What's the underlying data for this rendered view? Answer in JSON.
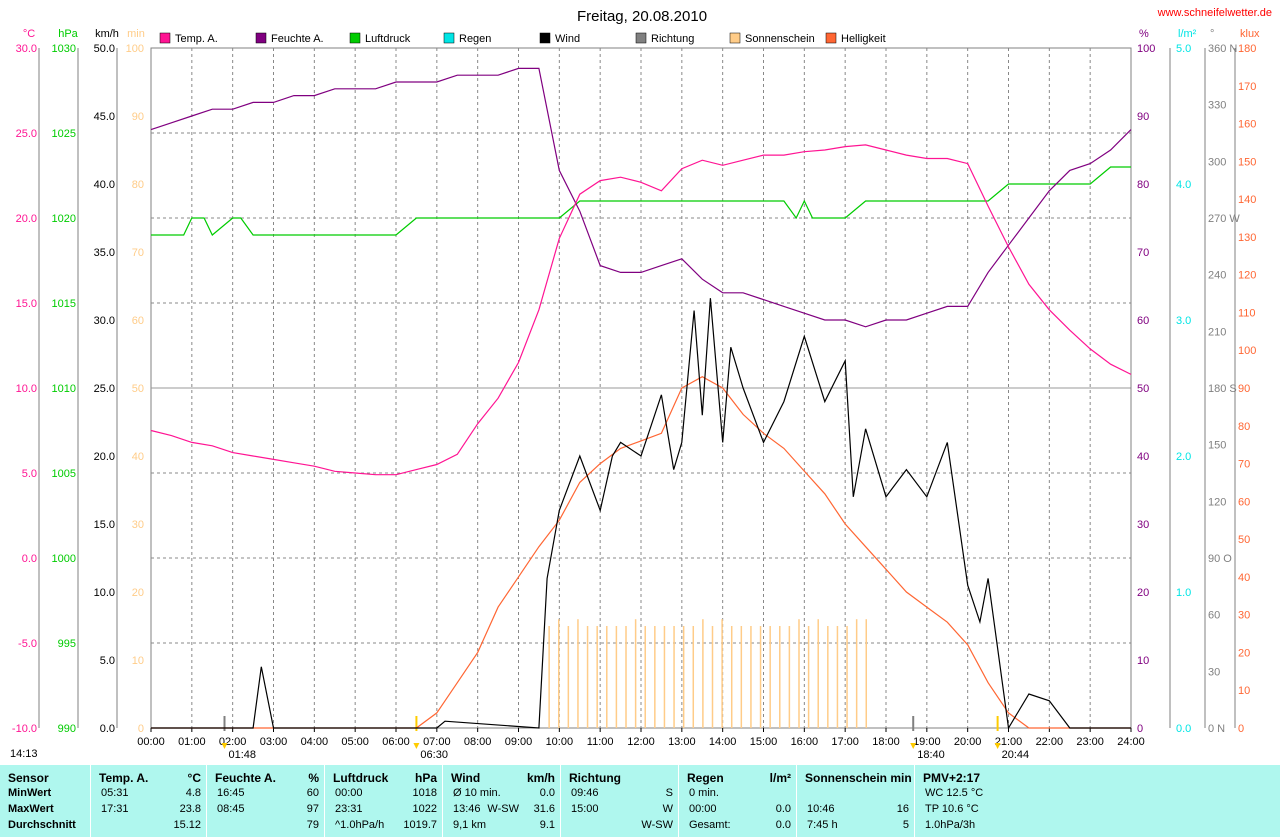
{
  "header": {
    "title": "Freitag, 20.08.2010",
    "website": "www.schneifelwetter.de",
    "timestamp": "14:13"
  },
  "colors": {
    "temp": "#ff1493",
    "humidity": "#800080",
    "pressure": "#00cc00",
    "rain": "#00e5e5",
    "wind": "#000000",
    "direction": "#808080",
    "sunshine": "#ffcc88",
    "brightness": "#ff6633",
    "summary_bg": "#aff7ee"
  },
  "axes": {
    "left": [
      {
        "unit": "°C",
        "ticks": [
          "30.0",
          "25.0",
          "20.0",
          "15.0",
          "10.0",
          "5.0",
          "0.0",
          "-5.0",
          "-10.0"
        ],
        "color": "#ff1493"
      },
      {
        "unit": "hPa",
        "ticks": [
          "1030",
          "1025",
          "1020",
          "1015",
          "1010",
          "1005",
          "1000",
          "995",
          "990"
        ],
        "color": "#00cc00"
      },
      {
        "unit": "km/h",
        "ticks": [
          "50.0",
          "45.0",
          "40.0",
          "35.0",
          "30.0",
          "25.0",
          "20.0",
          "15.0",
          "10.0",
          "5.0",
          "0.0"
        ],
        "color": "#000000"
      },
      {
        "unit": "min",
        "ticks": [
          "100",
          "90",
          "80",
          "70",
          "60",
          "50",
          "40",
          "30",
          "20",
          "10",
          "0"
        ],
        "color": "#ffcc88"
      }
    ],
    "right": [
      {
        "unit": "%",
        "ticks": [
          "100",
          "90",
          "80",
          "70",
          "60",
          "50",
          "40",
          "30",
          "20",
          "10",
          "0"
        ],
        "color": "#800080"
      },
      {
        "unit": "l/m²",
        "ticks": [
          "5.0",
          "4.0",
          "3.0",
          "2.0",
          "1.0",
          "0.0"
        ],
        "color": "#00e5e5"
      },
      {
        "unit": "°",
        "ticks": [
          "360 N",
          "330",
          "300",
          "270 W",
          "240",
          "210",
          "180 S",
          "150",
          "120",
          "90 O",
          "60",
          "30",
          "0 N"
        ],
        "color": "#808080"
      },
      {
        "unit": "klux",
        "ticks": [
          "180",
          "170",
          "160",
          "150",
          "140",
          "130",
          "120",
          "110",
          "100",
          "90",
          "80",
          "70",
          "60",
          "50",
          "40",
          "30",
          "20",
          "10",
          "0"
        ],
        "color": "#ff6633"
      }
    ]
  },
  "legend": [
    {
      "label": "Temp. A.",
      "color": "#ff1493"
    },
    {
      "label": "Feuchte A.",
      "color": "#800080"
    },
    {
      "label": "Luftdruck",
      "color": "#00cc00"
    },
    {
      "label": "Regen",
      "color": "#00e5e5"
    },
    {
      "label": "Wind",
      "color": "#000000"
    },
    {
      "label": "Richtung",
      "color": "#808080"
    },
    {
      "label": "Sonnenschein",
      "color": "#ffcc88"
    },
    {
      "label": "Helligkeit",
      "color": "#ff6633"
    }
  ],
  "events": {
    "moonset": "01:48",
    "sunrise": "06:30",
    "moonrise": "18:40",
    "sunset": "20:44"
  },
  "chart_data": {
    "type": "line",
    "title": "Freitag, 20.08.2010",
    "x_ticks": [
      "00:00",
      "01:00",
      "02:00",
      "03:00",
      "04:00",
      "05:00",
      "06:00",
      "07:00",
      "08:00",
      "09:00",
      "10:00",
      "11:00",
      "12:00",
      "13:00",
      "14:00",
      "15:00",
      "16:00",
      "17:00",
      "18:00",
      "19:00",
      "20:00",
      "21:00",
      "22:00",
      "23:00",
      "24:00"
    ],
    "x_range": [
      0,
      24
    ],
    "grid": true,
    "series": [
      {
        "name": "Temp. A.",
        "axis": "°C",
        "range": [
          -10,
          30
        ],
        "x": [
          0,
          0.5,
          1,
          1.5,
          2,
          2.5,
          3,
          3.5,
          4,
          4.5,
          5,
          5.5,
          6,
          6.5,
          7,
          7.5,
          8,
          8.5,
          9,
          9.5,
          10,
          10.5,
          11,
          11.5,
          12,
          12.5,
          13,
          13.5,
          14,
          14.5,
          15,
          15.5,
          16,
          16.5,
          17,
          17.5,
          18,
          18.5,
          19,
          19.5,
          20,
          20.5,
          21,
          21.5,
          22,
          22.5,
          23,
          23.5,
          24
        ],
        "y": [
          7.5,
          7.2,
          6.8,
          6.6,
          6.2,
          6.0,
          5.8,
          5.6,
          5.4,
          5.1,
          5.0,
          4.9,
          4.9,
          5.2,
          5.5,
          6.1,
          7.9,
          9.4,
          11.5,
          14.6,
          18.8,
          21.4,
          22.2,
          22.4,
          22.1,
          21.6,
          22.9,
          23.4,
          23.1,
          23.4,
          23.7,
          23.7,
          23.9,
          24.0,
          24.2,
          24.3,
          24.0,
          23.7,
          23.5,
          23.5,
          23.2,
          20.7,
          18.3,
          16.1,
          14.6,
          13.4,
          12.3,
          11.4,
          10.8
        ]
      },
      {
        "name": "Feuchte A.",
        "axis": "%",
        "range": [
          0,
          100
        ],
        "x": [
          0,
          0.5,
          1,
          1.5,
          2,
          2.5,
          3,
          3.5,
          4,
          4.5,
          5,
          5.5,
          6,
          6.5,
          7,
          7.5,
          8,
          8.5,
          9,
          9.5,
          10,
          10.5,
          11,
          11.5,
          12,
          12.5,
          13,
          13.5,
          14,
          14.5,
          15,
          15.5,
          16,
          16.5,
          17,
          17.5,
          18,
          18.5,
          19,
          19.5,
          20,
          20.5,
          21,
          21.5,
          22,
          22.5,
          23,
          23.5,
          24
        ],
        "y": [
          88,
          89,
          90,
          91,
          91,
          92,
          92,
          93,
          93,
          94,
          94,
          94,
          95,
          95,
          95,
          96,
          96,
          96,
          97,
          97,
          82,
          76,
          68,
          67,
          67,
          68,
          69,
          66,
          64,
          64,
          63,
          62,
          61,
          60,
          60,
          59,
          60,
          60,
          61,
          62,
          62,
          67,
          71,
          75,
          79,
          82,
          83,
          85,
          88
        ]
      },
      {
        "name": "Luftdruck",
        "axis": "hPa",
        "range": [
          990,
          1030
        ],
        "x": [
          0,
          0.8,
          1,
          1.3,
          1.5,
          2,
          2.2,
          2.5,
          3,
          4,
          5,
          6,
          6.5,
          7,
          8,
          9,
          10,
          10.5,
          11,
          12,
          13,
          14,
          15,
          15.5,
          15.8,
          16,
          16.2,
          17,
          17.5,
          18,
          19,
          20,
          20.5,
          21,
          22,
          23,
          23.5,
          24
        ],
        "y": [
          1019,
          1019,
          1020,
          1020,
          1019,
          1020,
          1020,
          1019,
          1019,
          1019,
          1019,
          1019,
          1020,
          1020,
          1020,
          1020,
          1020,
          1021,
          1021,
          1021,
          1021,
          1021,
          1021,
          1021,
          1020,
          1021,
          1020,
          1020,
          1021,
          1021,
          1021,
          1021,
          1021,
          1022,
          1022,
          1022,
          1023,
          1023
        ]
      },
      {
        "name": "Wind",
        "axis": "km/h",
        "range": [
          0,
          50
        ],
        "x": [
          0,
          2.5,
          2.7,
          3,
          4,
          7,
          7.2,
          9.5,
          9.7,
          10,
          10.5,
          11,
          11.3,
          11.5,
          12,
          12.5,
          12.8,
          13,
          13.3,
          13.5,
          13.7,
          14,
          14.2,
          14.5,
          15,
          15.5,
          16,
          16.5,
          17,
          17.2,
          17.5,
          18,
          18.5,
          19,
          19.5,
          20,
          20.3,
          20.5,
          21,
          21.5,
          22,
          22.5,
          23,
          24
        ],
        "y": [
          0,
          0,
          4.5,
          0,
          0,
          0,
          0.5,
          0,
          11,
          16,
          20,
          16,
          20,
          21,
          20,
          24.5,
          19,
          21,
          30.7,
          23,
          31.6,
          21,
          28,
          25,
          21,
          24,
          28.8,
          24,
          27,
          17,
          22,
          17,
          19,
          17,
          21,
          10.5,
          7.8,
          11,
          0,
          2.5,
          2,
          0,
          0,
          0
        ]
      },
      {
        "name": "Sonnenschein",
        "axis": "min",
        "range": [
          0,
          100
        ],
        "bars_from": "09:45",
        "bars_to": "17:31",
        "values": [
          15,
          16,
          15,
          16,
          15,
          15,
          15,
          15,
          15,
          16,
          15,
          15,
          15,
          15,
          15,
          15,
          16,
          15,
          16,
          15,
          15,
          15,
          15,
          15,
          15,
          15,
          16,
          15,
          16,
          15,
          15,
          15,
          16,
          16
        ]
      },
      {
        "name": "Helligkeit",
        "axis": "klux",
        "range": [
          0,
          180
        ],
        "x": [
          0,
          6.5,
          7,
          7.5,
          8,
          8.5,
          9,
          9.5,
          10,
          10.5,
          11,
          11.5,
          12,
          12.5,
          13,
          13.5,
          14,
          14.5,
          15,
          15.5,
          16,
          16.5,
          17,
          17.5,
          18,
          18.5,
          19,
          19.5,
          20,
          20.5,
          21,
          21.5,
          24
        ],
        "y": [
          0,
          0,
          4,
          12,
          20,
          32,
          40,
          48,
          55,
          65,
          70,
          74,
          76,
          78,
          90,
          93,
          90,
          83,
          78,
          74,
          68,
          62,
          54,
          48,
          42,
          36,
          32,
          28,
          22,
          12,
          4,
          0,
          0
        ]
      }
    ]
  },
  "summary": {
    "sections": [
      {
        "title": "Sensor",
        "unit": "",
        "rows": [
          [
            "MinWert"
          ],
          [
            "MaxWert"
          ],
          [
            "Durchschnitt"
          ]
        ]
      },
      {
        "title": "Temp. A.",
        "unit": "°C",
        "rows": [
          [
            "05:31",
            "4.8"
          ],
          [
            "17:31",
            "23.8"
          ],
          [
            "",
            "15.12"
          ]
        ]
      },
      {
        "title": "Feuchte A.",
        "unit": "%",
        "rows": [
          [
            "16:45",
            "60"
          ],
          [
            "08:45",
            "97"
          ],
          [
            "",
            "79"
          ]
        ]
      },
      {
        "title": "Luftdruck",
        "unit": "hPa",
        "rows": [
          [
            "00:00",
            "1018"
          ],
          [
            "23:31",
            "1022"
          ],
          [
            "^1.0hPa/h",
            "1019.7"
          ]
        ]
      },
      {
        "title": "Wind",
        "unit": "km/h",
        "rows": [
          [
            "Ø 10 min.",
            "",
            "0.0"
          ],
          [
            "13:46",
            "W-SW",
            "31.6"
          ],
          [
            "9,1 km",
            "",
            "9.1"
          ]
        ]
      },
      {
        "title": "Richtung",
        "unit": "",
        "rows": [
          [
            "09:46",
            "S"
          ],
          [
            "15:00",
            "W"
          ],
          [
            "",
            "W-SW"
          ]
        ]
      },
      {
        "title": "Regen",
        "unit": "l/m²",
        "rows": [
          [
            "0 min.",
            ""
          ],
          [
            "00:00",
            "0.0"
          ],
          [
            "Gesamt:",
            "0.0"
          ]
        ]
      },
      {
        "title": "Sonnenschein min",
        "unit": "",
        "rows": [
          [
            "",
            ""
          ],
          [
            "10:46",
            "16"
          ],
          [
            "7:45 h",
            "5"
          ]
        ]
      },
      {
        "title": "PMV+2:17",
        "unit": "",
        "rows": [
          [
            "WC 12.5 °C"
          ],
          [
            "TP 10.6 °C"
          ],
          [
            "1.0hPa/3h"
          ]
        ]
      }
    ]
  }
}
